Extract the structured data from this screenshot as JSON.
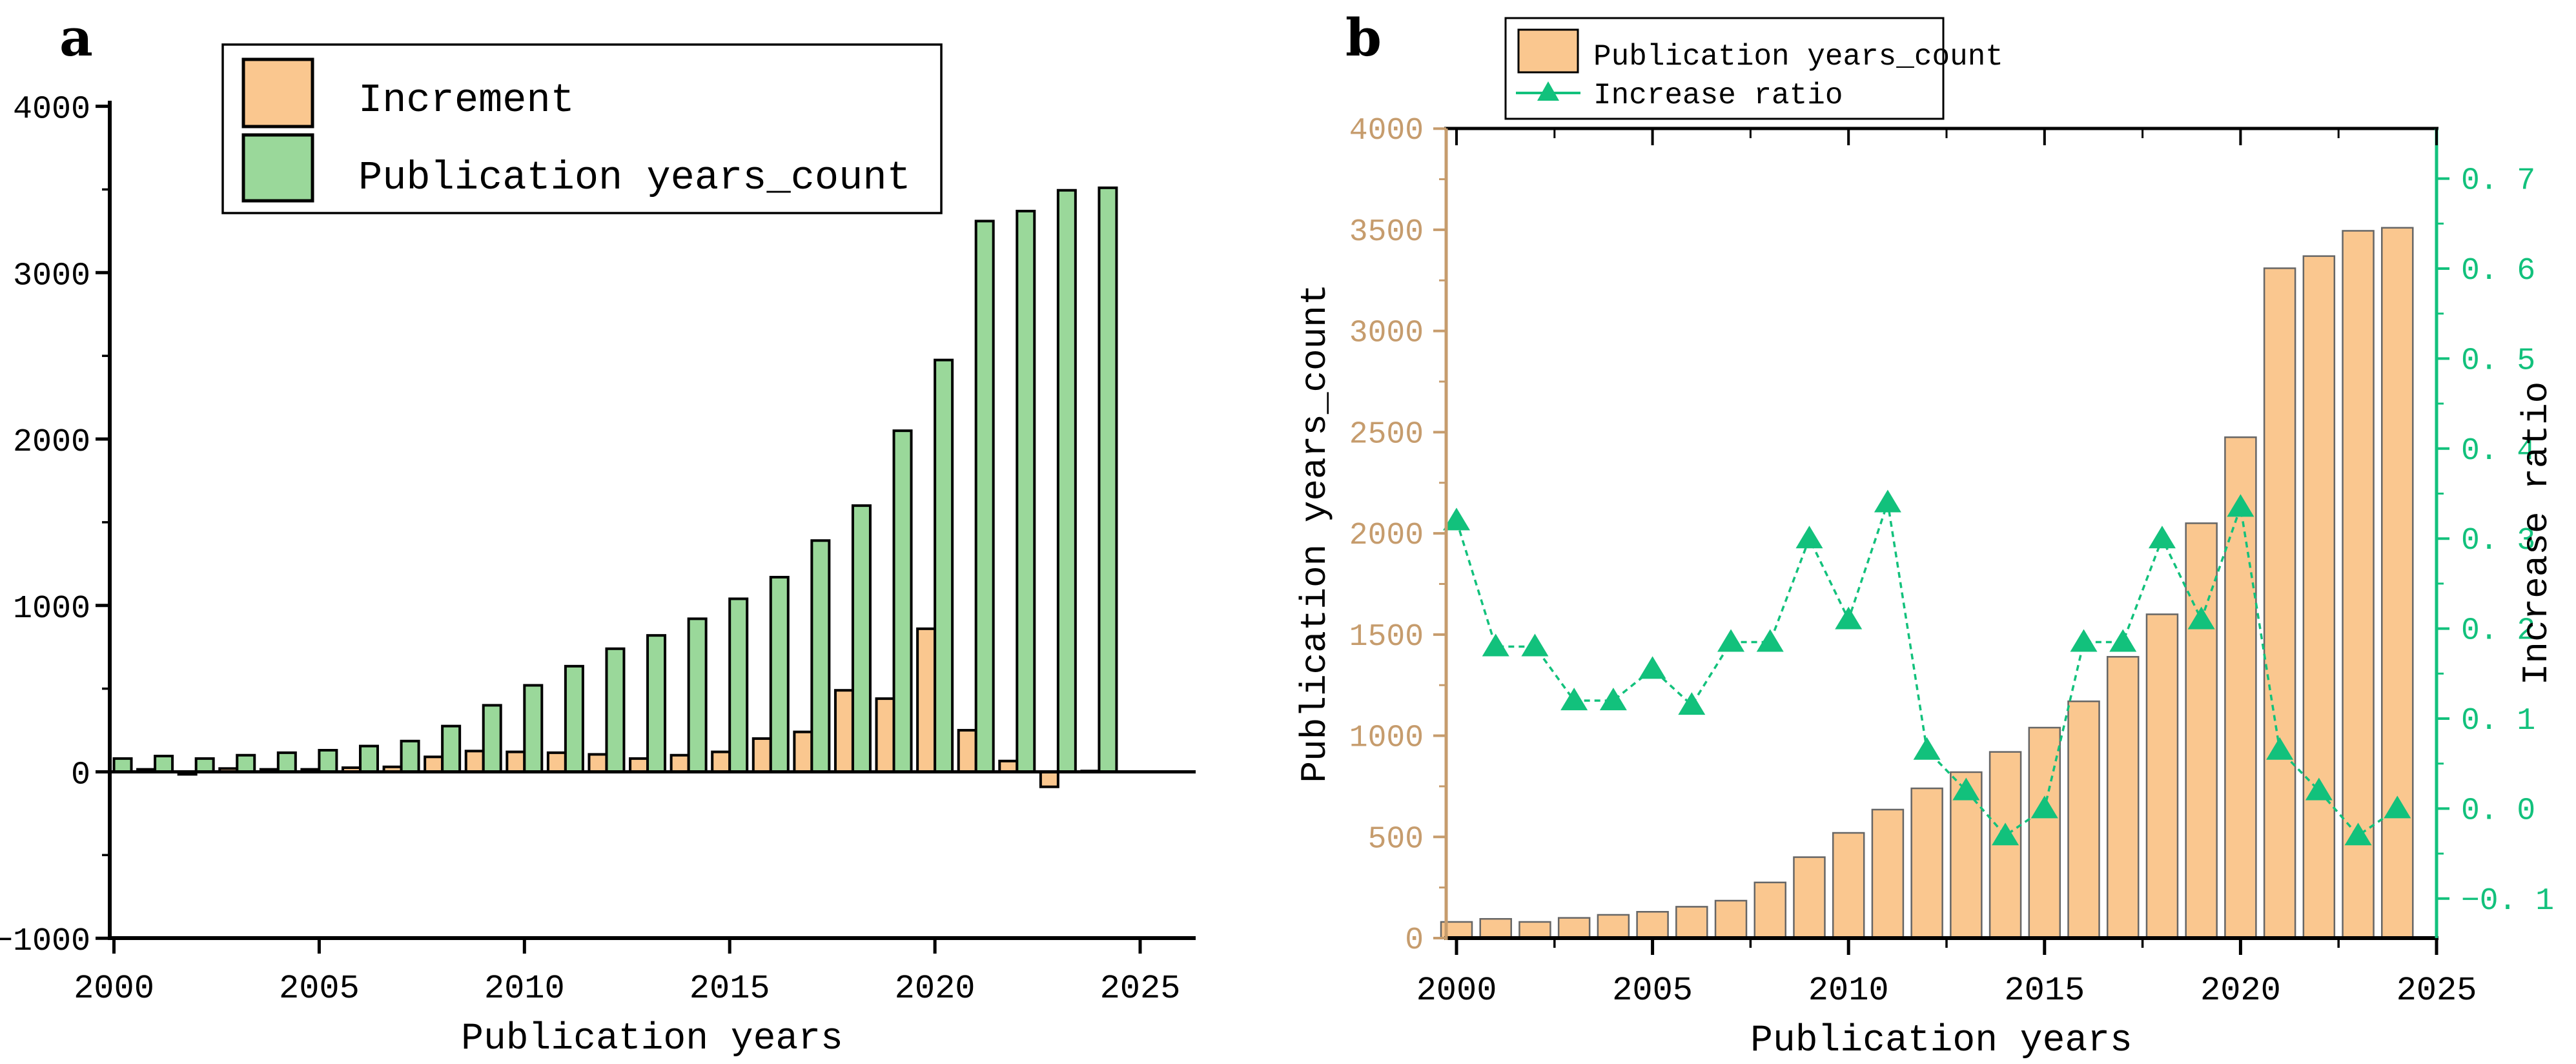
{
  "panels": {
    "a_label": "a",
    "b_label": "b"
  },
  "colors": {
    "orange": "#FAC78F",
    "green": "#9AD89A",
    "teal": "#12C17C",
    "tan": "#C69C6D",
    "bar_edge_a": "#000000",
    "bar_edge_b": "#666666",
    "black": "#000000"
  },
  "chart_data": [
    {
      "id": "a",
      "type": "bar",
      "xlabel": "Publication years",
      "categories": [
        2000,
        2001,
        2002,
        2003,
        2004,
        2005,
        2006,
        2007,
        2008,
        2009,
        2010,
        2011,
        2012,
        2013,
        2014,
        2015,
        2016,
        2017,
        2018,
        2019,
        2020,
        2021,
        2022,
        2023,
        2024
      ],
      "series": [
        {
          "name": "Increment",
          "color_key": "orange",
          "values": [
            0,
            15,
            -15,
            20,
            15,
            15,
            25,
            30,
            90,
            125,
            120,
            115,
            105,
            80,
            100,
            120,
            200,
            240,
            490,
            440,
            860,
            250,
            65,
            -90,
            5
          ]
        },
        {
          "name": "Publication years_count",
          "color_key": "green",
          "values": [
            80,
            95,
            80,
            100,
            115,
            130,
            155,
            185,
            275,
            400,
            520,
            635,
            740,
            820,
            920,
            1040,
            1170,
            1390,
            1600,
            2050,
            2475,
            3310,
            3370,
            3495,
            3510
          ]
        }
      ],
      "ylim": [
        -1000,
        4000
      ],
      "yticks": [
        -1000,
        0,
        1000,
        2000,
        3000,
        4000
      ],
      "ytick_labels": [
        "−1000",
        "0",
        "1000",
        "2000",
        "3000",
        "4000"
      ],
      "yticks_minor": [
        -500,
        500,
        1500,
        2500,
        3500
      ],
      "xticks": [
        2000,
        2005,
        2010,
        2015,
        2020,
        2025
      ],
      "legend": [
        "Increment",
        "Publication years_count"
      ],
      "legend_position": "top-left",
      "grid": false
    },
    {
      "id": "b",
      "type": "bar+line",
      "xlabel": "Publication years",
      "ylabel_left": "Publication years_count",
      "ylabel_right": "Increase ratio",
      "categories": [
        2000,
        2001,
        2002,
        2003,
        2004,
        2005,
        2006,
        2007,
        2008,
        2009,
        2010,
        2011,
        2012,
        2013,
        2014,
        2015,
        2016,
        2017,
        2018,
        2019,
        2020,
        2021,
        2022,
        2023,
        2024
      ],
      "bar_series": {
        "name": "Publication years_count",
        "color_key": "orange",
        "values": [
          80,
          95,
          80,
          100,
          115,
          130,
          155,
          185,
          275,
          400,
          520,
          635,
          740,
          820,
          920,
          1040,
          1170,
          1390,
          1600,
          2050,
          2475,
          3310,
          3370,
          3495,
          3510
        ]
      },
      "line_series": {
        "name": "Increase ratio",
        "color_key": "teal",
        "marker": "triangle-up",
        "values": [
          0.32,
          0.18,
          0.18,
          0.12,
          0.12,
          0.155,
          0.115,
          0.185,
          0.185,
          0.3,
          0.21,
          0.34,
          0.065,
          0.02,
          -0.03,
          0.0,
          0.185,
          0.185,
          0.3,
          0.21,
          0.335,
          0.065,
          0.02,
          -0.03,
          0.0
        ]
      },
      "ylim_left": [
        0,
        4000
      ],
      "yticks_left": [
        0,
        500,
        1000,
        1500,
        2000,
        2500,
        3000,
        3500,
        4000
      ],
      "ytick_labels_left": [
        "0",
        "500",
        "1000",
        "1500",
        "2000",
        "2500",
        "3000",
        "3500",
        "4000"
      ],
      "yticks_left_minor": [
        250,
        750,
        1250,
        1750,
        2250,
        2750,
        3250,
        3750
      ],
      "ylim_right": [
        -0.145,
        0.755
      ],
      "yticks_right": [
        -0.1,
        0.0,
        0.1,
        0.2,
        0.3,
        0.4,
        0.5,
        0.6,
        0.7
      ],
      "ytick_labels_right": [
        "−0. 1",
        "0. 0",
        "0. 1",
        "0. 2",
        "0. 3",
        "0. 4",
        "0. 5",
        "0. 6",
        "0. 7"
      ],
      "yticks_right_minor": [
        -0.05,
        0.05,
        0.15,
        0.25,
        0.35,
        0.45,
        0.55,
        0.65
      ],
      "xticks": [
        2000,
        2005,
        2010,
        2015,
        2020,
        2025
      ],
      "xticks_minor": [
        2002.5,
        2007.5,
        2012.5,
        2017.5,
        2022.5
      ],
      "legend": [
        "Publication years_count",
        "Increase ratio"
      ],
      "legend_position": "top-left-outside",
      "grid": false
    }
  ]
}
